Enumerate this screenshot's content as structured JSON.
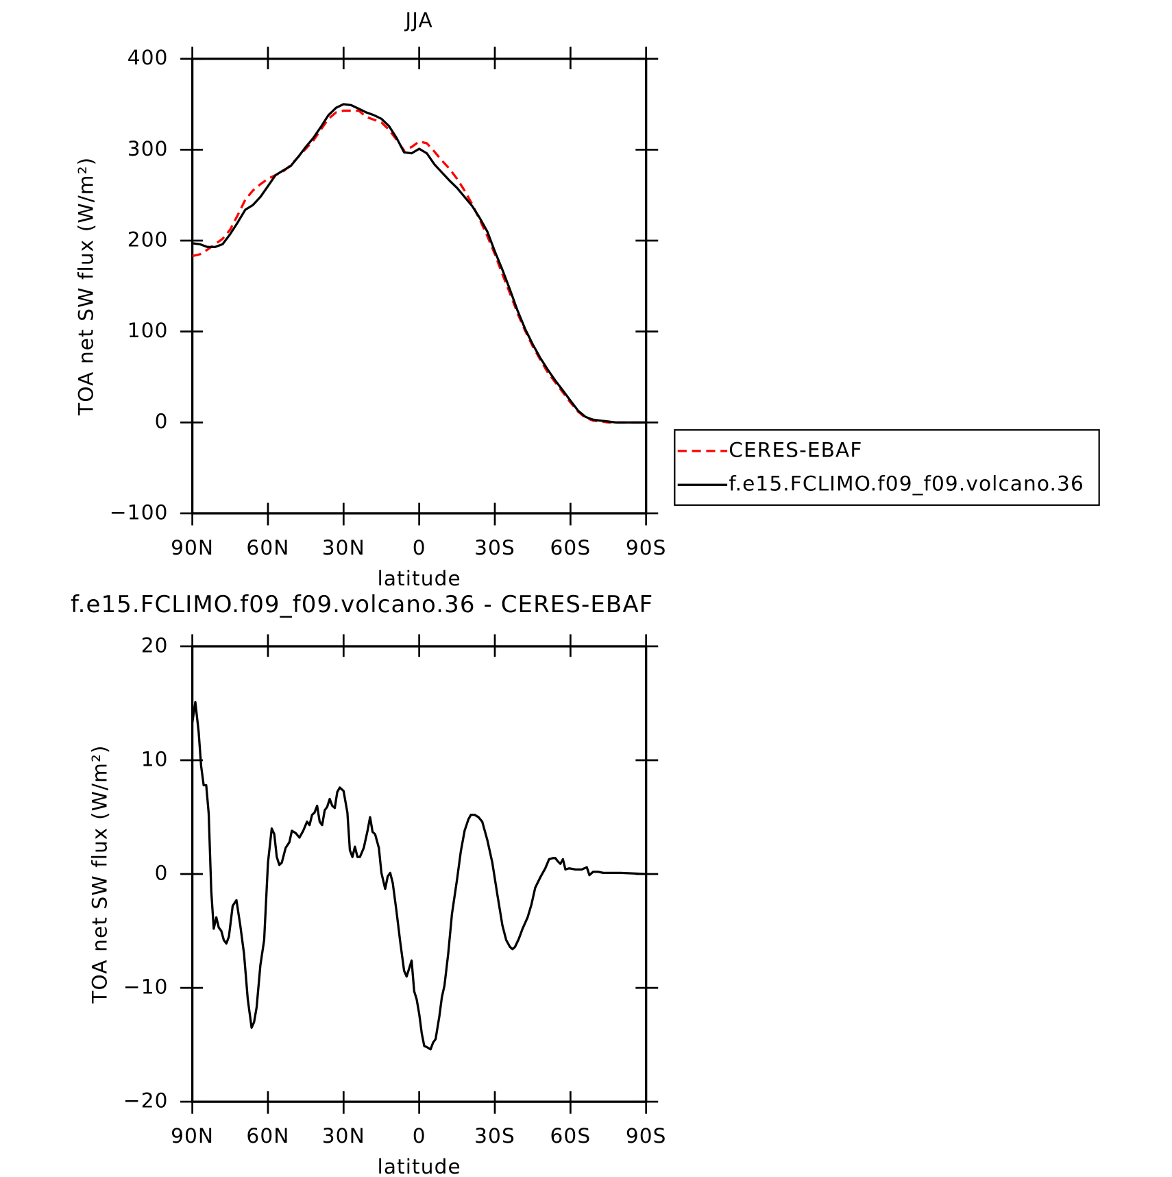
{
  "chart_data": [
    {
      "type": "line",
      "title": "JJA",
      "xlabel": "latitude",
      "ylabel": "TOA net SW flux (W/m²)",
      "xlim": [
        90,
        -90
      ],
      "xticks": [
        {
          "value": 90,
          "label": "90N"
        },
        {
          "value": 60,
          "label": "60N"
        },
        {
          "value": 30,
          "label": "30N"
        },
        0,
        {
          "value": -30,
          "label": "30S"
        },
        {
          "value": -60,
          "label": "60S"
        },
        {
          "value": -90,
          "label": "90S"
        }
      ],
      "ylim": [
        -100,
        400
      ],
      "yticks": [
        {
          "value": -100,
          "label": "−100"
        },
        0,
        100,
        200,
        300,
        400
      ],
      "legend": "right",
      "x": [
        90,
        87,
        84,
        81,
        78,
        75,
        72,
        69,
        66,
        63,
        60,
        57,
        54,
        51,
        48,
        45,
        42,
        39,
        36,
        33,
        30,
        27,
        24,
        21,
        18,
        15,
        12,
        9,
        6,
        3,
        0,
        -3,
        -6,
        -9,
        -12,
        -15,
        -18,
        -21,
        -24,
        -27,
        -30,
        -33,
        -36,
        -39,
        -42,
        -45,
        -48,
        -51,
        -54,
        -57,
        -60,
        -63,
        -66,
        -69,
        -72,
        -75,
        -78,
        -81,
        -84,
        -87,
        -90
      ],
      "series": [
        {
          "name": "CERES-EBAF",
          "color": "#ff0000",
          "dash": true,
          "values": [
            183,
            185,
            190,
            196,
            202,
            212,
            228,
            245,
            255,
            262,
            268,
            272,
            276,
            283,
            292,
            301,
            310,
            322,
            334,
            341,
            343,
            343,
            343,
            336,
            333,
            330,
            322,
            311,
            299,
            303,
            309,
            307,
            298,
            288,
            279,
            268,
            255,
            240,
            223,
            205,
            185,
            163,
            142,
            120,
            101,
            84,
            69,
            55,
            44,
            33,
            22,
            12,
            5,
            2,
            1,
            0,
            0,
            0,
            0,
            0,
            0
          ]
        },
        {
          "name": "f.e15.FCLIMO.f09_f09.volcano.36",
          "color": "#000000",
          "dash": false,
          "values": [
            197,
            196,
            193,
            193,
            196,
            207,
            220,
            234,
            239,
            248,
            260,
            272,
            277,
            282,
            292,
            303,
            313,
            325,
            338,
            346,
            350,
            349,
            345,
            341,
            338,
            334,
            326,
            313,
            297,
            296,
            301,
            296,
            284,
            275,
            266,
            258,
            248,
            238,
            225,
            210,
            188,
            168,
            146,
            123,
            103,
            86,
            71,
            58,
            46,
            35,
            24,
            13,
            6,
            3,
            2,
            1,
            0,
            0,
            0,
            0,
            0
          ]
        }
      ]
    },
    {
      "type": "line",
      "title": "f.e15.FCLIMO.f09_f09.volcano.36 - CERES-EBAF",
      "xlabel": "latitude",
      "ylabel": "TOA net SW flux (W/m²)",
      "xlim": [
        90,
        -90
      ],
      "xticks": [
        {
          "value": 90,
          "label": "90N"
        },
        {
          "value": 60,
          "label": "60N"
        },
        {
          "value": 30,
          "label": "30N"
        },
        0,
        {
          "value": -30,
          "label": "30S"
        },
        {
          "value": -60,
          "label": "60S"
        },
        {
          "value": -90,
          "label": "90S"
        }
      ],
      "ylim": [
        -20,
        20
      ],
      "yticks": [
        {
          "value": -20,
          "label": "−20"
        },
        {
          "value": -10,
          "label": "−10"
        },
        0,
        10,
        20
      ],
      "x": [
        90,
        88.8,
        87.5,
        86.5,
        85.5,
        84.5,
        83.5,
        82.5,
        81.5,
        80.5,
        79.5,
        78.5,
        77.5,
        76.5,
        75.5,
        74,
        72.5,
        71,
        69.5,
        68,
        66.5,
        65.5,
        64.5,
        63,
        61.5,
        60,
        58.5,
        57.5,
        56.5,
        55.5,
        54.5,
        53,
        51.5,
        50.5,
        49,
        47.5,
        46,
        44.5,
        43.5,
        42.5,
        41.5,
        40.5,
        39.5,
        38.5,
        37.5,
        36.5,
        35.5,
        34.5,
        33.5,
        32.5,
        31.5,
        30,
        28.5,
        27.5,
        26.5,
        25.5,
        24.5,
        23.5,
        22,
        20.5,
        19.5,
        18.5,
        17.5,
        16,
        15,
        13.5,
        12.5,
        11.5,
        10.5,
        9,
        7.5,
        6,
        5,
        4,
        3,
        2,
        1,
        0,
        -1,
        -2,
        -3,
        -4.5,
        -5.5,
        -6.5,
        -8,
        -9,
        -10,
        -11.5,
        -13,
        -15,
        -16.5,
        -18,
        -19.5,
        -20.5,
        -22,
        -23.5,
        -25,
        -27,
        -29,
        -31,
        -33,
        -34.5,
        -36,
        -37,
        -38,
        -39.5,
        -41,
        -43,
        -44.5,
        -46,
        -48,
        -50,
        -51.5,
        -53,
        -54,
        -55,
        -56,
        -57,
        -58,
        -59.5,
        -62,
        -64.5,
        -66.5,
        -67.5,
        -69,
        -71,
        -73,
        -80,
        -90
      ],
      "series": [
        {
          "name": "f.e15.FCLIMO.f09_f09.volcano.36 - CERES-EBAF",
          "color": "#000000",
          "dash": false,
          "values": [
            13.3,
            15.1,
            12.5,
            9.5,
            7.8,
            7.8,
            5.3,
            -1.5,
            -4.8,
            -3.8,
            -4.7,
            -5.0,
            -5.8,
            -6.1,
            -5.5,
            -2.8,
            -2.3,
            -4.5,
            -7,
            -11,
            -13.5,
            -13,
            -11.7,
            -8,
            -5.8,
            1,
            4.0,
            3.5,
            1.5,
            0.8,
            1.0,
            2.3,
            2.8,
            3.8,
            3.6,
            3.2,
            3.8,
            4.6,
            4.3,
            5.2,
            5.4,
            6.0,
            4.6,
            4.3,
            5.6,
            5.9,
            6.6,
            6.0,
            5.8,
            7.2,
            7.6,
            7.3,
            5.4,
            2.1,
            1.5,
            2.4,
            1.5,
            1.5,
            2.3,
            3.8,
            5.0,
            3.7,
            3.5,
            2.3,
            0.1,
            -1.3,
            -0.2,
            0.1,
            -0.8,
            -3.3,
            -6.0,
            -8.5,
            -9.0,
            -8.3,
            -7.6,
            -10.3,
            -11,
            -12.3,
            -14,
            -15.1,
            -15.2,
            -15.4,
            -14.8,
            -14.5,
            -12.5,
            -10.8,
            -9.8,
            -7,
            -3.5,
            -0.5,
            2,
            3.8,
            4.8,
            5.2,
            5.2,
            5.0,
            4.6,
            3.0,
            1.0,
            -1.8,
            -4.5,
            -5.8,
            -6.4,
            -6.6,
            -6.4,
            -5.7,
            -4.8,
            -3.8,
            -2.7,
            -1.2,
            -0.3,
            0.5,
            1.3,
            1.4,
            1.4,
            1.1,
            0.9,
            1.3,
            0.4,
            0.5,
            0.4,
            0.4,
            0.6,
            -0.1,
            0.2,
            0.2,
            0.1,
            0.1,
            0
          ]
        }
      ]
    }
  ]
}
